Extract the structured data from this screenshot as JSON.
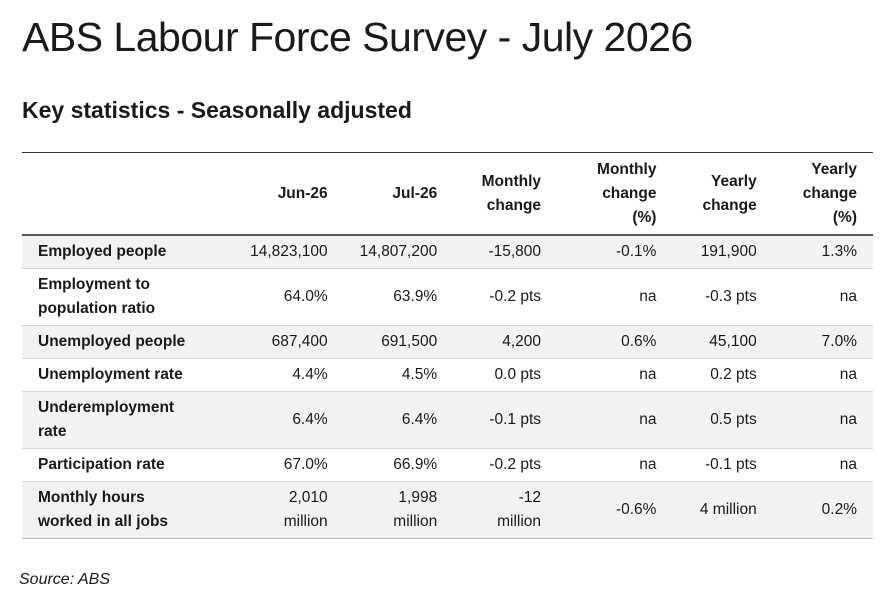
{
  "title": "ABS Labour Force Survey - July 2026",
  "subtitle": "Key statistics - Seasonally adjusted",
  "columns": [
    "Jun-26",
    "Jul-26",
    "Monthly change",
    "Monthly change (%)",
    "Yearly change",
    "Yearly change (%)"
  ],
  "rows": [
    {
      "label": "Employed people",
      "values": [
        "14,823,100",
        "14,807,200",
        "-15,800",
        "-0.1%",
        "191,900",
        "1.3%"
      ]
    },
    {
      "label": "Employment to population ratio",
      "values": [
        "64.0%",
        "63.9%",
        "-0.2 pts",
        "na",
        "-0.3 pts",
        "na"
      ]
    },
    {
      "label": "Unemployed people",
      "values": [
        "687,400",
        "691,500",
        "4,200",
        "0.6%",
        "45,100",
        "7.0%"
      ]
    },
    {
      "label": "Unemployment rate",
      "values": [
        "4.4%",
        "4.5%",
        "0.0 pts",
        "na",
        "0.2 pts",
        "na"
      ]
    },
    {
      "label": "Underemployment rate",
      "values": [
        "6.4%",
        "6.4%",
        "-0.1 pts",
        "na",
        "0.5 pts",
        "na"
      ]
    },
    {
      "label": "Participation rate",
      "values": [
        "67.0%",
        "66.9%",
        "-0.2 pts",
        "na",
        "-0.1 pts",
        "na"
      ]
    },
    {
      "label": "Monthly hours worked in all jobs",
      "values": [
        "2,010 million",
        "1,998 million",
        "-12 million",
        "-0.6%",
        "4 million",
        "0.2%"
      ]
    }
  ],
  "source": "Source: ABS"
}
